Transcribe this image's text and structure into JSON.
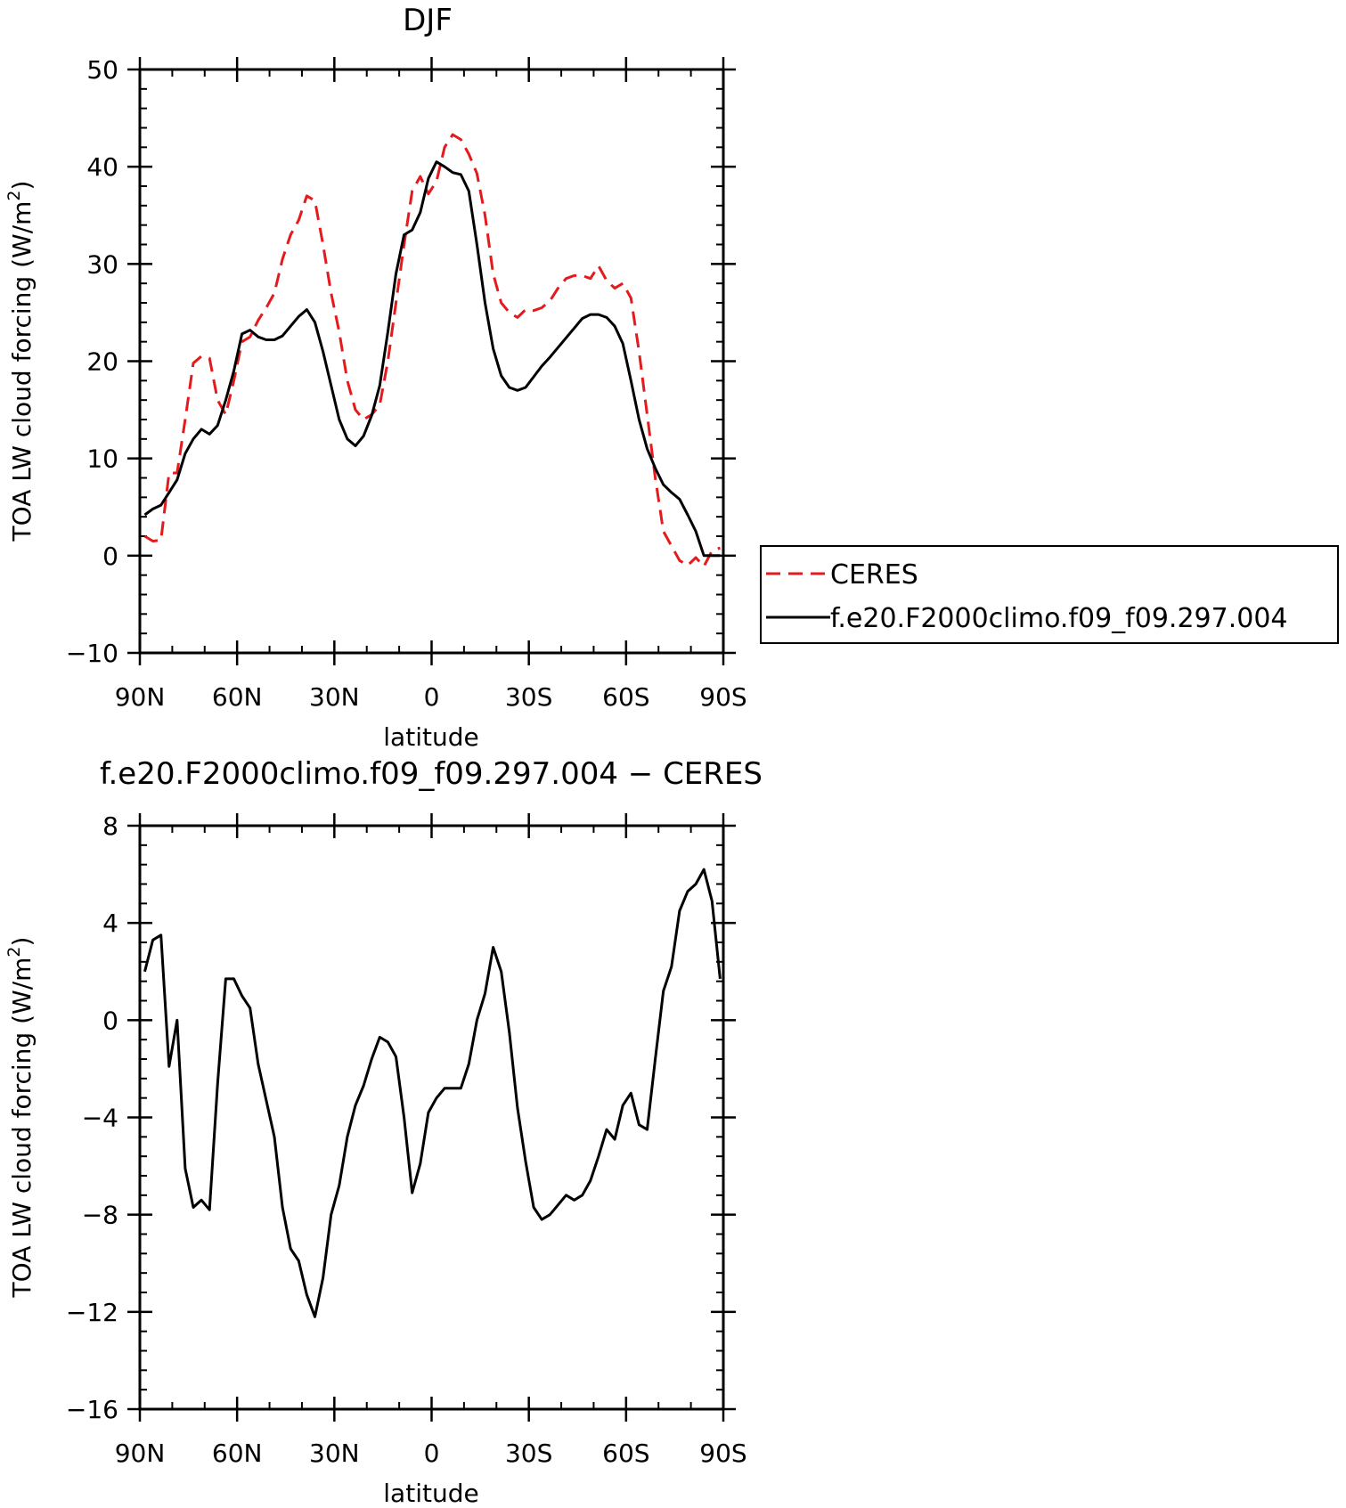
{
  "chart_data": [
    {
      "type": "line",
      "title": "DJF",
      "xlabel": "latitude",
      "ylabel": "TOA LW cloud forcing (W/m",
      "ylabel_sup": "2",
      "ylabel_close": ")",
      "xlim": [
        90,
        -90
      ],
      "ylim": [
        -10,
        50
      ],
      "xticks": [
        {
          "value": 90,
          "label": "90N"
        },
        {
          "value": 60,
          "label": "60N"
        },
        {
          "value": 30,
          "label": "30N"
        },
        {
          "value": 0,
          "label": "0"
        },
        {
          "value": -30,
          "label": "30S"
        },
        {
          "value": -60,
          "label": "60S"
        },
        {
          "value": -90,
          "label": "90S"
        }
      ],
      "yticks": [
        {
          "value": 50,
          "label": "50"
        },
        {
          "value": 40,
          "label": "40"
        },
        {
          "value": 30,
          "label": "30"
        },
        {
          "value": 20,
          "label": "20"
        },
        {
          "value": 10,
          "label": "10"
        },
        {
          "value": 0,
          "label": "0"
        },
        {
          "value": -10,
          "label": "−10"
        }
      ],
      "legend_position": "right",
      "series": [
        {
          "name": "CERES",
          "color": "#e41a1c",
          "dash": true,
          "x": [
            88.5,
            86,
            83.5,
            81,
            78.5,
            76,
            73.5,
            71,
            68.5,
            66,
            63.5,
            61,
            58.5,
            56,
            53.5,
            51,
            48.5,
            46,
            43.5,
            41,
            38.5,
            36,
            33.5,
            31,
            28.5,
            26,
            23.5,
            21,
            18.5,
            16,
            13.5,
            11,
            8.5,
            6,
            3.5,
            1,
            -1.5,
            -4,
            -6.5,
            -9,
            -11.5,
            -14,
            -16.5,
            -19,
            -21.5,
            -24,
            -26.5,
            -29,
            -31.5,
            -34,
            -36.5,
            -39,
            -41.5,
            -44,
            -46.5,
            -49,
            -51.5,
            -54,
            -56.5,
            -59,
            -61.5,
            -64,
            -66.5,
            -69,
            -71.5,
            -74,
            -76.5,
            -79,
            -81.5,
            -84,
            -86.5,
            -89
          ],
          "y": [
            2,
            1.5,
            1.6,
            8.5,
            8.5,
            14,
            19.8,
            20.5,
            20.3,
            16,
            14.5,
            18,
            22,
            22.5,
            24.2,
            25.5,
            27,
            30.5,
            33,
            34.5,
            37,
            36.5,
            32,
            27,
            23,
            18,
            15,
            14,
            14.5,
            15.5,
            20,
            26,
            32,
            37.5,
            39,
            37.2,
            38.5,
            42,
            43.3,
            42.8,
            41.3,
            39.3,
            35,
            29,
            26,
            25,
            24.5,
            25.3,
            25.2,
            25.5,
            26.2,
            27.5,
            28.5,
            28.8,
            28.8,
            28.5,
            29.8,
            28.3,
            27.5,
            28,
            26.5,
            21,
            14.5,
            8,
            2.5,
            1,
            -0.5,
            -1,
            -0.2,
            -1.1,
            0.5,
            0.8
          ]
        },
        {
          "name": "f.e20.F2000climo.f09_f09.297.004",
          "color": "#000000",
          "dash": false,
          "x": [
            88.5,
            86,
            83.5,
            81,
            78.5,
            76,
            73.5,
            71,
            68.5,
            66,
            63.5,
            61,
            58.5,
            56,
            53.5,
            51,
            48.5,
            46,
            43.5,
            41,
            38.5,
            36,
            33.5,
            31,
            28.5,
            26,
            23.5,
            21,
            18.5,
            16,
            13.5,
            11,
            8.5,
            6,
            3.5,
            1,
            -1.5,
            -4,
            -6.5,
            -9,
            -11.5,
            -14,
            -16.5,
            -19,
            -21.5,
            -24,
            -26.5,
            -29,
            -31.5,
            -34,
            -36.5,
            -39,
            -41.5,
            -44,
            -46.5,
            -49,
            -51.5,
            -54,
            -56.5,
            -59,
            -61.5,
            -64,
            -66.5,
            -69,
            -71.5,
            -74,
            -76.5,
            -79,
            -81.5,
            -84,
            -86.5,
            -89
          ],
          "y": [
            4.2,
            4.8,
            5.2,
            6.5,
            7.8,
            10.5,
            12,
            13,
            12.5,
            13.4,
            16,
            19,
            22.8,
            23.2,
            22.5,
            22.2,
            22.2,
            22.6,
            23.6,
            24.6,
            25.3,
            24,
            21,
            17.5,
            14,
            12,
            11.3,
            12.3,
            14.4,
            17.5,
            23,
            29,
            33,
            33.5,
            35.3,
            38.8,
            40.5,
            40,
            39.4,
            39.2,
            37.5,
            32,
            26,
            21.3,
            18.5,
            17.3,
            17,
            17.3,
            18.4,
            19.5,
            20.4,
            21.4,
            22.4,
            23.4,
            24.4,
            24.8,
            24.8,
            24.5,
            23.6,
            21.8,
            18,
            14,
            11,
            9,
            7.3,
            6.5,
            5.8,
            4.2,
            2.5,
            0,
            0,
            0
          ]
        }
      ]
    },
    {
      "type": "line",
      "title": "f.e20.F2000climo.f09_f09.297.004 − CERES",
      "xlabel": "latitude",
      "ylabel": "TOA LW cloud forcing (W/m",
      "ylabel_sup": "2",
      "ylabel_close": ")",
      "xlim": [
        90,
        -90
      ],
      "ylim": [
        -16,
        8
      ],
      "xticks": [
        {
          "value": 90,
          "label": "90N"
        },
        {
          "value": 60,
          "label": "60N"
        },
        {
          "value": 30,
          "label": "30N"
        },
        {
          "value": 0,
          "label": "0"
        },
        {
          "value": -30,
          "label": "30S"
        },
        {
          "value": -60,
          "label": "60S"
        },
        {
          "value": -90,
          "label": "90S"
        }
      ],
      "yticks": [
        {
          "value": 8,
          "label": "8"
        },
        {
          "value": 4,
          "label": "4"
        },
        {
          "value": 0,
          "label": "0"
        },
        {
          "value": -4,
          "label": "−4"
        },
        {
          "value": -8,
          "label": "−8"
        },
        {
          "value": -12,
          "label": "−12"
        },
        {
          "value": -16,
          "label": "−16"
        }
      ],
      "series": [
        {
          "color": "#000000",
          "dash": false,
          "x": [
            88.5,
            86,
            83.5,
            81,
            78.5,
            76,
            73.5,
            71,
            68.5,
            66,
            63.5,
            61,
            58.5,
            56,
            53.5,
            51,
            48.5,
            46,
            43.5,
            41,
            38.5,
            36,
            33.5,
            31,
            28.5,
            26,
            23.5,
            21,
            18.5,
            16,
            13.5,
            11,
            8.5,
            6,
            3.5,
            1,
            -1.5,
            -4,
            -6.5,
            -9,
            -11.5,
            -14,
            -16.5,
            -19,
            -21.5,
            -24,
            -26.5,
            -29,
            -31.5,
            -34,
            -36.5,
            -39,
            -41.5,
            -44,
            -46.5,
            -49,
            -51.5,
            -54,
            -56.5,
            -59,
            -61.5,
            -64,
            -66.5,
            -69,
            -71.5,
            -74,
            -76.5,
            -79,
            -81.5,
            -84,
            -86.5,
            -89
          ],
          "y": [
            2,
            3.3,
            3.5,
            -1.9,
            0,
            -6.1,
            -7.7,
            -7.4,
            -7.8,
            -2.6,
            1.7,
            1.7,
            1,
            0.5,
            -1.8,
            -3.3,
            -4.8,
            -7.7,
            -9.4,
            -9.9,
            -11.3,
            -12.2,
            -10.6,
            -8,
            -6.8,
            -4.8,
            -3.5,
            -2.7,
            -1.6,
            -0.7,
            -0.9,
            -1.5,
            -4,
            -7.1,
            -5.9,
            -3.8,
            -3.2,
            -2.8,
            -2.8,
            -2.8,
            -1.8,
            0,
            1.1,
            3,
            2,
            -0.5,
            -3.6,
            -5.8,
            -7.7,
            -8.2,
            -8,
            -7.6,
            -7.2,
            -7.4,
            -7.2,
            -6.6,
            -5.6,
            -4.5,
            -4.9,
            -3.5,
            -3,
            -4.3,
            -4.5,
            -1.6,
            1.2,
            2.2,
            4.5,
            5.3,
            5.6,
            6.2,
            4.9,
            1.7
          ]
        }
      ]
    }
  ]
}
